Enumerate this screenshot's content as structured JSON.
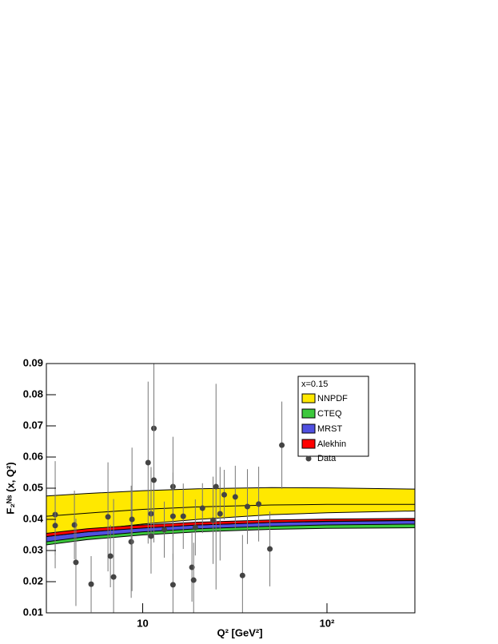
{
  "chart_data": {
    "type": "band",
    "xlabel": "Q² [GeV²]",
    "ylabel": "F₂ᴺˢ (x, Q²)",
    "xscale": "log",
    "xlim": [
      3,
      300
    ],
    "xticks": [
      10,
      {
        "value": 100,
        "label": "10²"
      }
    ],
    "ylim": [
      0.01,
      0.09
    ],
    "yticks": [
      0.01,
      0.02,
      0.03,
      0.04,
      0.05,
      0.06,
      0.07,
      0.08,
      0.09
    ],
    "legend_title": "x=0.15",
    "x": [
      3,
      5,
      10,
      20,
      50,
      100,
      300
    ],
    "series": [
      {
        "name": "NNPDF",
        "color": "#ffe800",
        "lower": [
          0.0345,
          0.0365,
          0.0385,
          0.04,
          0.0415,
          0.0421,
          0.0427
        ],
        "upper": [
          0.0475,
          0.0483,
          0.0492,
          0.0498,
          0.0502,
          0.0501,
          0.0497
        ],
        "central": [
          0.041,
          0.042,
          0.0432,
          0.044,
          0.0446,
          0.0448,
          0.0448
        ]
      },
      {
        "name": "CTEQ",
        "color": "#3cc83c",
        "lower": [
          0.0318,
          0.0335,
          0.035,
          0.036,
          0.0368,
          0.0371,
          0.0373
        ],
        "upper": [
          0.0335,
          0.035,
          0.0363,
          0.0372,
          0.038,
          0.0383,
          0.0385
        ]
      },
      {
        "name": "MRST",
        "color": "#5050e0",
        "lower": [
          0.0328,
          0.0345,
          0.036,
          0.037,
          0.0378,
          0.0382,
          0.0385
        ],
        "upper": [
          0.0345,
          0.036,
          0.0373,
          0.0382,
          0.039,
          0.0393,
          0.0396
        ]
      },
      {
        "name": "Alekhin",
        "color": "#ff0000",
        "lower": [
          0.0345,
          0.036,
          0.0372,
          0.0382,
          0.039,
          0.0394,
          0.0397
        ],
        "upper": [
          0.0355,
          0.037,
          0.0382,
          0.0391,
          0.0398,
          0.0401,
          0.0403
        ]
      }
    ],
    "data": {
      "name": "Data",
      "color": "#444444",
      "x": [
        3.35,
        3.35,
        4.26,
        4.34,
        5.25,
        6.48,
        6.68,
        6.95,
        8.66,
        8.75,
        10.7,
        11.1,
        11.1,
        11.5,
        11.5,
        13.1,
        14.6,
        14.6,
        14.6,
        16.6,
        18.5,
        18.9,
        19.3,
        21.1,
        24.1,
        25.0,
        26.3,
        27.7,
        31.8,
        34.8,
        37.0,
        42.6,
        49.0,
        56.9
      ],
      "values": [
        0.0415,
        0.038,
        0.0382,
        0.0262,
        0.0192,
        0.0408,
        0.0282,
        0.0215,
        0.0328,
        0.04,
        0.0582,
        0.0418,
        0.0346,
        0.0692,
        0.0526,
        0.0367,
        0.0505,
        0.041,
        0.019,
        0.041,
        0.0246,
        0.0205,
        0.0374,
        0.0436,
        0.0397,
        0.0505,
        0.0418,
        0.0479,
        0.0472,
        0.022,
        0.0441,
        0.0449,
        0.0305,
        0.0638
      ],
      "errors": [
        0.0172,
        0.0095,
        0.011,
        0.014,
        0.009,
        0.0175,
        0.01,
        0.025,
        0.018,
        0.023,
        0.026,
        0.015,
        0.012,
        0.028,
        0.02,
        0.009,
        0.016,
        0.014,
        0.01,
        0.0105,
        0.011,
        0.012,
        0.009,
        0.008,
        0.014,
        0.033,
        0.015,
        0.008,
        0.01,
        0.013,
        0.012,
        0.012,
        0.012,
        0.014
      ]
    }
  }
}
